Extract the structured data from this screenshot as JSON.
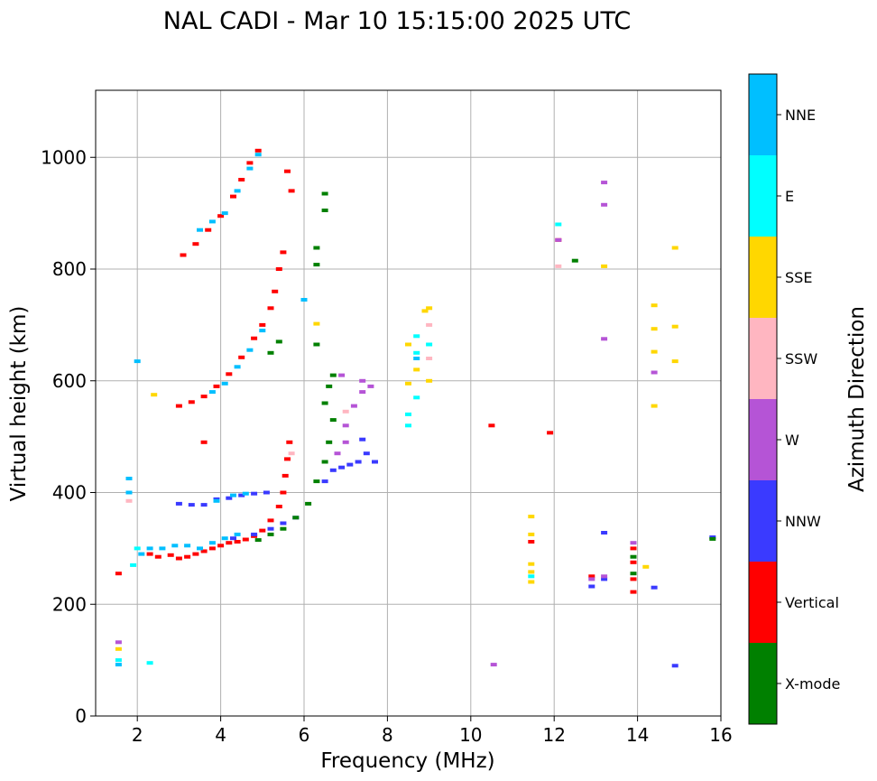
{
  "chart_data": {
    "type": "scatter",
    "title": "NAL CADI - Mar 10 15:15:00 2025 UTC",
    "xlabel": "Frequency (MHz)",
    "ylabel": "Virtual height (km)",
    "xlim": [
      1,
      16
    ],
    "ylim": [
      0,
      1120
    ],
    "xticks": [
      2,
      4,
      6,
      8,
      10,
      12,
      14,
      16
    ],
    "yticks": [
      0,
      200,
      400,
      600,
      800,
      1000
    ],
    "grid": true,
    "colorbar": {
      "label": "Azimuth Direction",
      "categories": [
        {
          "name": "X-mode",
          "color": "#008000"
        },
        {
          "name": "Vertical",
          "color": "#ff0000"
        },
        {
          "name": "NNW",
          "color": "#3a3aff"
        },
        {
          "name": "W",
          "color": "#b554d6"
        },
        {
          "name": "SSW",
          "color": "#ffb6c1"
        },
        {
          "name": "SSE",
          "color": "#ffd700"
        },
        {
          "name": "E",
          "color": "#00ffff"
        },
        {
          "name": "NNE",
          "color": "#00bfff"
        }
      ]
    },
    "series": [
      {
        "name": "Vertical",
        "color": "#ff0000",
        "points": [
          [
            1.55,
            255
          ],
          [
            2.3,
            290
          ],
          [
            2.5,
            285
          ],
          [
            2.8,
            288
          ],
          [
            3.0,
            282
          ],
          [
            3.2,
            285
          ],
          [
            3.4,
            290
          ],
          [
            3.6,
            295
          ],
          [
            3.8,
            300
          ],
          [
            4.0,
            305
          ],
          [
            4.2,
            310
          ],
          [
            4.4,
            312
          ],
          [
            4.6,
            316
          ],
          [
            4.8,
            322
          ],
          [
            5.0,
            332
          ],
          [
            5.2,
            350
          ],
          [
            5.4,
            375
          ],
          [
            5.5,
            400
          ],
          [
            5.55,
            430
          ],
          [
            5.6,
            460
          ],
          [
            5.65,
            490
          ],
          [
            3.0,
            555
          ],
          [
            3.3,
            562
          ],
          [
            3.6,
            572
          ],
          [
            3.9,
            590
          ],
          [
            4.2,
            612
          ],
          [
            4.5,
            642
          ],
          [
            4.8,
            676
          ],
          [
            5.0,
            700
          ],
          [
            5.2,
            730
          ],
          [
            5.3,
            760
          ],
          [
            5.4,
            800
          ],
          [
            5.5,
            830
          ],
          [
            3.1,
            825
          ],
          [
            3.4,
            845
          ],
          [
            3.7,
            870
          ],
          [
            4.0,
            895
          ],
          [
            4.3,
            930
          ],
          [
            4.5,
            960
          ],
          [
            4.7,
            990
          ],
          [
            4.9,
            1012
          ],
          [
            5.6,
            975
          ],
          [
            5.7,
            940
          ],
          [
            3.6,
            490
          ],
          [
            10.5,
            520
          ],
          [
            11.9,
            507
          ],
          [
            11.45,
            312
          ],
          [
            13.9,
            222
          ],
          [
            13.9,
            245
          ],
          [
            13.9,
            275
          ],
          [
            13.9,
            300
          ],
          [
            12.1,
            852
          ],
          [
            12.9,
            250
          ]
        ]
      },
      {
        "name": "NNW",
        "color": "#3a3aff",
        "points": [
          [
            3.0,
            380
          ],
          [
            3.3,
            378
          ],
          [
            3.6,
            378
          ],
          [
            3.9,
            388
          ],
          [
            4.2,
            390
          ],
          [
            4.5,
            395
          ],
          [
            4.8,
            398
          ],
          [
            5.1,
            400
          ],
          [
            4.3,
            318
          ],
          [
            4.8,
            325
          ],
          [
            5.2,
            335
          ],
          [
            5.5,
            345
          ],
          [
            5.8,
            355
          ],
          [
            6.5,
            420
          ],
          [
            6.7,
            440
          ],
          [
            6.9,
            445
          ],
          [
            7.1,
            450
          ],
          [
            7.3,
            455
          ],
          [
            7.5,
            470
          ],
          [
            7.7,
            455
          ],
          [
            7.4,
            495
          ],
          [
            12.9,
            232
          ],
          [
            13.2,
            245
          ],
          [
            13.2,
            328
          ],
          [
            14.4,
            230
          ],
          [
            14.9,
            90
          ],
          [
            15.8,
            320
          ]
        ]
      },
      {
        "name": "X-mode",
        "color": "#008000",
        "points": [
          [
            4.9,
            315
          ],
          [
            5.2,
            325
          ],
          [
            5.5,
            335
          ],
          [
            5.8,
            355
          ],
          [
            6.1,
            380
          ],
          [
            6.3,
            420
          ],
          [
            6.5,
            455
          ],
          [
            6.6,
            490
          ],
          [
            6.7,
            530
          ],
          [
            6.5,
            560
          ],
          [
            6.6,
            590
          ],
          [
            6.7,
            610
          ],
          [
            5.2,
            650
          ],
          [
            5.4,
            670
          ],
          [
            6.3,
            665
          ],
          [
            6.3,
            808
          ],
          [
            6.3,
            838
          ],
          [
            6.5,
            905
          ],
          [
            6.5,
            935
          ],
          [
            12.5,
            815
          ],
          [
            13.9,
            255
          ],
          [
            13.9,
            285
          ],
          [
            15.8,
            317
          ]
        ]
      },
      {
        "name": "W",
        "color": "#b554d6",
        "points": [
          [
            6.8,
            470
          ],
          [
            7.0,
            490
          ],
          [
            7.0,
            520
          ],
          [
            7.2,
            555
          ],
          [
            7.4,
            580
          ],
          [
            6.9,
            610
          ],
          [
            7.4,
            600
          ],
          [
            7.6,
            590
          ],
          [
            10.55,
            92
          ],
          [
            13.2,
            955
          ],
          [
            13.2,
            915
          ],
          [
            13.2,
            675
          ],
          [
            14.4,
            615
          ],
          [
            13.9,
            310
          ],
          [
            12.1,
            852
          ],
          [
            1.55,
            132
          ],
          [
            12.9,
            245
          ],
          [
            13.2,
            250
          ]
        ]
      },
      {
        "name": "SSW",
        "color": "#ffb6c1",
        "points": [
          [
            5.7,
            470
          ],
          [
            7.0,
            545
          ],
          [
            9.0,
            700
          ],
          [
            9.0,
            640
          ],
          [
            12.1,
            805
          ],
          [
            1.8,
            385
          ]
        ]
      },
      {
        "name": "SSE",
        "color": "#ffd700",
        "points": [
          [
            8.5,
            665
          ],
          [
            8.7,
            620
          ],
          [
            8.9,
            725
          ],
          [
            9.0,
            730
          ],
          [
            9.0,
            600
          ],
          [
            8.5,
            595
          ],
          [
            6.3,
            702
          ],
          [
            2.4,
            575
          ],
          [
            11.45,
            357
          ],
          [
            11.45,
            325
          ],
          [
            11.45,
            272
          ],
          [
            11.45,
            258
          ],
          [
            11.45,
            240
          ],
          [
            13.2,
            805
          ],
          [
            14.2,
            267
          ],
          [
            14.4,
            735
          ],
          [
            14.4,
            693
          ],
          [
            14.4,
            652
          ],
          [
            14.4,
            555
          ],
          [
            14.9,
            838
          ],
          [
            14.9,
            697
          ],
          [
            14.9,
            635
          ],
          [
            1.55,
            120
          ]
        ]
      },
      {
        "name": "E",
        "color": "#00ffff",
        "points": [
          [
            8.5,
            540
          ],
          [
            8.5,
            520
          ],
          [
            8.7,
            570
          ],
          [
            8.7,
            680
          ],
          [
            8.7,
            650
          ],
          [
            9.0,
            665
          ],
          [
            12.1,
            880
          ],
          [
            11.45,
            250
          ],
          [
            1.55,
            100
          ],
          [
            2.3,
            95
          ],
          [
            1.9,
            270
          ],
          [
            2.0,
            300
          ]
        ]
      },
      {
        "name": "NNE",
        "color": "#00bfff",
        "points": [
          [
            2.1,
            290
          ],
          [
            2.3,
            300
          ],
          [
            2.6,
            300
          ],
          [
            2.9,
            305
          ],
          [
            3.2,
            305
          ],
          [
            3.5,
            300
          ],
          [
            3.8,
            310
          ],
          [
            4.1,
            318
          ],
          [
            4.4,
            325
          ],
          [
            3.9,
            385
          ],
          [
            4.3,
            395
          ],
          [
            4.6,
            398
          ],
          [
            3.8,
            580
          ],
          [
            4.1,
            595
          ],
          [
            4.4,
            625
          ],
          [
            4.7,
            655
          ],
          [
            5.0,
            690
          ],
          [
            3.5,
            870
          ],
          [
            3.8,
            885
          ],
          [
            4.1,
            900
          ],
          [
            4.4,
            940
          ],
          [
            4.7,
            980
          ],
          [
            4.9,
            1005
          ],
          [
            2.0,
            635
          ],
          [
            1.8,
            425
          ],
          [
            1.8,
            400
          ],
          [
            1.55,
            92
          ],
          [
            6.0,
            745
          ],
          [
            8.7,
            640
          ]
        ]
      }
    ]
  }
}
